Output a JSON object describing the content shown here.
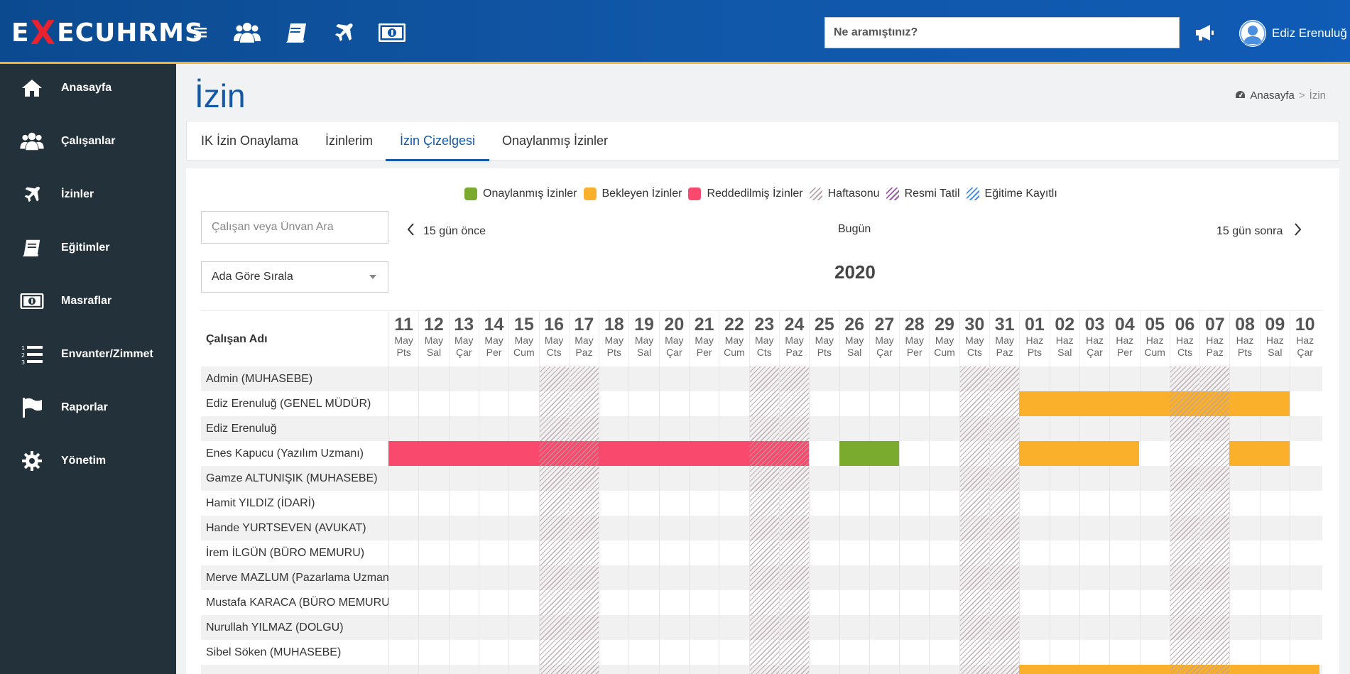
{
  "header": {
    "logo_prefix": "E",
    "logo_x": "X",
    "logo_suffix": "ECUHRMS",
    "search_placeholder": "Ne aramıştınız?",
    "user_name": "Ediz Erenuluğ",
    "icons": [
      "menu-icon",
      "users-icon",
      "book-icon",
      "plane-icon",
      "money-icon",
      "megaphone-icon"
    ]
  },
  "sidebar": {
    "items": [
      {
        "label": "Anasayfa",
        "icon": "home-icon"
      },
      {
        "label": "Çalışanlar",
        "icon": "users-icon"
      },
      {
        "label": "İzinler",
        "icon": "plane-icon"
      },
      {
        "label": "Eğitimler",
        "icon": "book-icon"
      },
      {
        "label": "Masraflar",
        "icon": "money-icon"
      },
      {
        "label": "Envanter/Zimmet",
        "icon": "list-numbered-icon"
      },
      {
        "label": "Raporlar",
        "icon": "flag-icon"
      },
      {
        "label": "Yönetim",
        "icon": "gear-icon"
      }
    ]
  },
  "page": {
    "title": "İzin",
    "breadcrumb": {
      "home": "Anasayfa",
      "separator": ">",
      "current": "İzin"
    }
  },
  "tabs": [
    {
      "label": "IK İzin Onaylama",
      "active": false
    },
    {
      "label": "İzinlerim",
      "active": false
    },
    {
      "label": "İzin Çizelgesi",
      "active": true
    },
    {
      "label": "Onaylanmış İzinler",
      "active": false
    }
  ],
  "legend": [
    {
      "label": "Onaylanmış İzinler",
      "color": "#7aab2f",
      "style": "solid"
    },
    {
      "label": "Bekleyen İzinler",
      "color": "#fbb02c",
      "style": "solid"
    },
    {
      "label": "Reddedilmiş İzinler",
      "color": "#f94a6e",
      "style": "solid"
    },
    {
      "label": "Haftasonu",
      "color": "#b9a9ad",
      "style": "hatch"
    },
    {
      "label": "Resmi Tatil",
      "color": "#9a5aa6",
      "style": "hatch"
    },
    {
      "label": "Eğitime Kayıtlı",
      "color": "#4a8fe0",
      "style": "hatch"
    }
  ],
  "controls": {
    "employee_search_placeholder": "Çalışan veya Ünvan Ara",
    "sort_label": "Ada Göre Sırala",
    "prev_label": "15 gün önce",
    "today_label": "Bugün",
    "next_label": "15 gün sonra",
    "year": "2020"
  },
  "schedule": {
    "name_header": "Çalışan Adı",
    "days": [
      {
        "d": "11",
        "m": "May",
        "w": "Pts",
        "weekend": false
      },
      {
        "d": "12",
        "m": "May",
        "w": "Sal",
        "weekend": false
      },
      {
        "d": "13",
        "m": "May",
        "w": "Çar",
        "weekend": false
      },
      {
        "d": "14",
        "m": "May",
        "w": "Per",
        "weekend": false
      },
      {
        "d": "15",
        "m": "May",
        "w": "Cum",
        "weekend": false
      },
      {
        "d": "16",
        "m": "May",
        "w": "Cts",
        "weekend": true
      },
      {
        "d": "17",
        "m": "May",
        "w": "Paz",
        "weekend": true
      },
      {
        "d": "18",
        "m": "May",
        "w": "Pts",
        "weekend": false
      },
      {
        "d": "19",
        "m": "May",
        "w": "Sal",
        "weekend": false
      },
      {
        "d": "20",
        "m": "May",
        "w": "Çar",
        "weekend": false
      },
      {
        "d": "21",
        "m": "May",
        "w": "Per",
        "weekend": false
      },
      {
        "d": "22",
        "m": "May",
        "w": "Cum",
        "weekend": false
      },
      {
        "d": "23",
        "m": "May",
        "w": "Cts",
        "weekend": true
      },
      {
        "d": "24",
        "m": "May",
        "w": "Paz",
        "weekend": true
      },
      {
        "d": "25",
        "m": "May",
        "w": "Pts",
        "weekend": false
      },
      {
        "d": "26",
        "m": "May",
        "w": "Sal",
        "weekend": false
      },
      {
        "d": "27",
        "m": "May",
        "w": "Çar",
        "weekend": false
      },
      {
        "d": "28",
        "m": "May",
        "w": "Per",
        "weekend": false
      },
      {
        "d": "29",
        "m": "May",
        "w": "Cum",
        "weekend": false
      },
      {
        "d": "30",
        "m": "May",
        "w": "Cts",
        "weekend": true
      },
      {
        "d": "31",
        "m": "May",
        "w": "Paz",
        "weekend": true
      },
      {
        "d": "01",
        "m": "Haz",
        "w": "Pts",
        "weekend": false
      },
      {
        "d": "02",
        "m": "Haz",
        "w": "Sal",
        "weekend": false
      },
      {
        "d": "03",
        "m": "Haz",
        "w": "Çar",
        "weekend": false
      },
      {
        "d": "04",
        "m": "Haz",
        "w": "Per",
        "weekend": false
      },
      {
        "d": "05",
        "m": "Haz",
        "w": "Cum",
        "weekend": false
      },
      {
        "d": "06",
        "m": "Haz",
        "w": "Cts",
        "weekend": true
      },
      {
        "d": "07",
        "m": "Haz",
        "w": "Paz",
        "weekend": true
      },
      {
        "d": "08",
        "m": "Haz",
        "w": "Pts",
        "weekend": false
      },
      {
        "d": "09",
        "m": "Haz",
        "w": "Sal",
        "weekend": false
      },
      {
        "d": "10",
        "m": "Haz",
        "w": "Çar",
        "weekend": false
      }
    ],
    "employees": [
      {
        "name": "Admin (MUHASEBE)",
        "leaves": []
      },
      {
        "name": "Ediz Erenuluğ (GENEL MÜDÜR)",
        "leaves": [
          {
            "from": "01 Haz",
            "to": "09 Haz",
            "status": "pending"
          }
        ]
      },
      {
        "name": "Ediz Erenuluğ",
        "leaves": []
      },
      {
        "name": "Enes Kapucu (Yazılım Uzmanı)",
        "leaves": [
          {
            "from": "11 May",
            "to": "24 May",
            "status": "rejected"
          },
          {
            "from": "26 May",
            "to": "27 May",
            "status": "approved"
          },
          {
            "from": "01 Haz",
            "to": "04 Haz",
            "status": "pending"
          },
          {
            "from": "08 Haz",
            "to": "09 Haz",
            "status": "pending"
          }
        ]
      },
      {
        "name": "Gamze ALTUNIŞIK (MUHASEBE)",
        "leaves": []
      },
      {
        "name": "Hamit YILDIZ (İDARİ)",
        "leaves": []
      },
      {
        "name": "Hande YURTSEVEN (AVUKAT)",
        "leaves": []
      },
      {
        "name": "İrem İLGÜN (BÜRO MEMURU)",
        "leaves": []
      },
      {
        "name": "Merve MAZLUM (Pazarlama Uzmanı)",
        "leaves": []
      },
      {
        "name": "Mustafa KARACA (BÜRO MEMURU)",
        "leaves": []
      },
      {
        "name": "Nurullah YILMAZ (DOLGU)",
        "leaves": []
      },
      {
        "name": "Sibel Söken (MUHASEBE)",
        "leaves": []
      },
      {
        "name": "",
        "leaves": [
          {
            "from": "01 Haz",
            "to": "10 Haz",
            "status": "pending"
          }
        ]
      }
    ]
  }
}
